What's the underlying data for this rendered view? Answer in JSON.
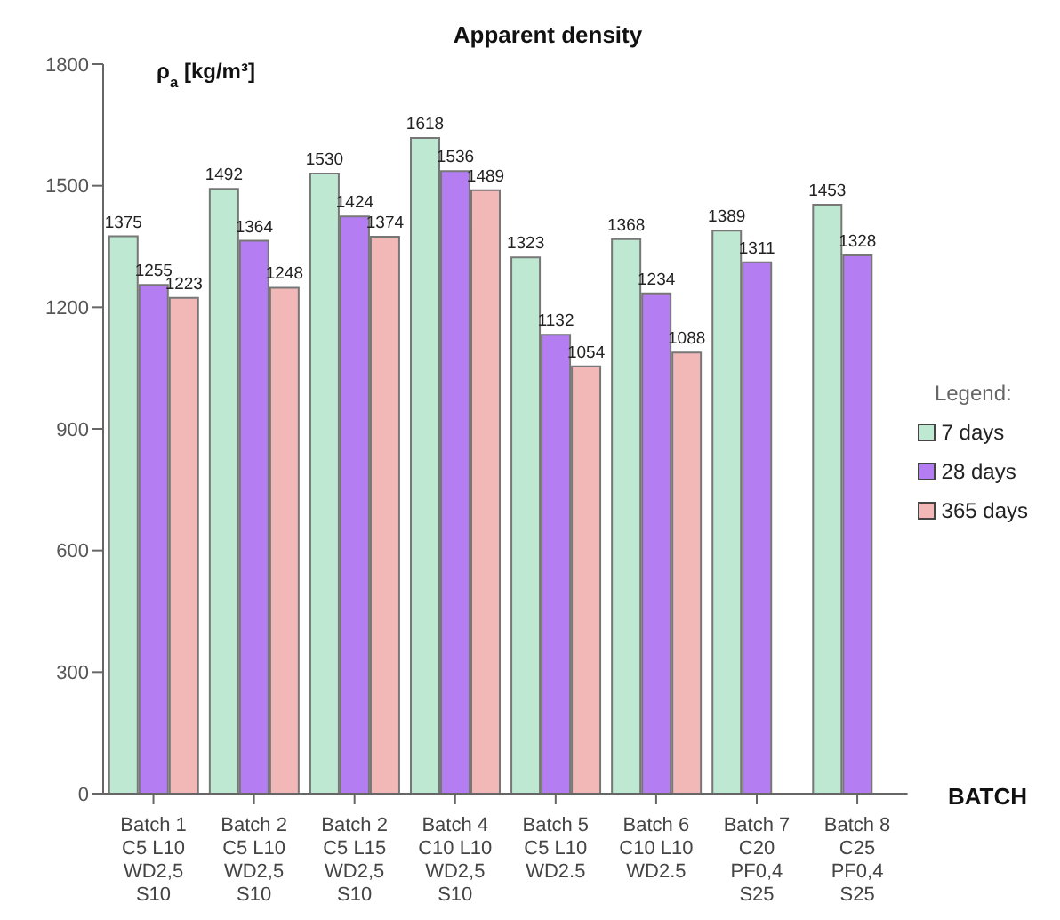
{
  "chart_data": {
    "type": "bar",
    "title": "Apparent density",
    "ylabel": "ρ$_{a}$ [kg/m³]",
    "xlabel": "BATCH",
    "legend_title": "Legend:",
    "categories": [
      "Batch 1\nC5 L10\nWD2,5\nS10",
      "Batch 2\nC5 L10\nWD2,5\nS10",
      "Batch 2\nC5 L15\nWD2,5\nS10",
      "Batch 4\nC10 L10\nWD2,5\nS10",
      "Batch 5\nC5 L10\nWD2.5",
      "Batch 6\nC10 L10\nWD2.5",
      "Batch 7\nC20\nPF0,4\nS25",
      "Batch 8\nC25\nPF0,4\nS25"
    ],
    "series": [
      {
        "name": "7 days",
        "color": "#bfe8d2",
        "values": [
          1375,
          1492,
          1530,
          1618,
          1323,
          1368,
          1389,
          1453
        ]
      },
      {
        "name": "28 days",
        "color": "#b47ef2",
        "values": [
          1255,
          1364,
          1424,
          1536,
          1132,
          1234,
          1311,
          1328
        ]
      },
      {
        "name": "365 days",
        "color": "#f2b8b8",
        "values": [
          1223,
          1248,
          1374,
          1489,
          1054,
          1088,
          null,
          null
        ]
      }
    ],
    "ylim": [
      0,
      1800
    ],
    "yticks": [
      0,
      300,
      600,
      900,
      1200,
      1500,
      1800
    ],
    "data_labels": true,
    "legend": "right",
    "grid": false
  }
}
